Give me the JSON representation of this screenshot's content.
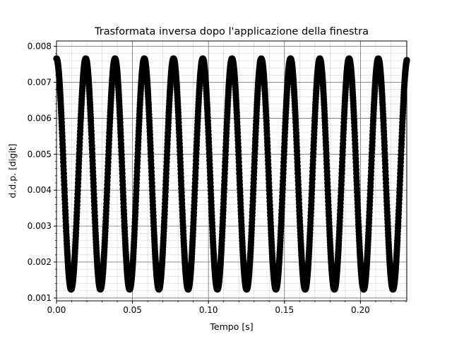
{
  "chart_data": {
    "type": "scatter",
    "title": "Trasformata inversa dopo l'applicazione della finestra",
    "xlabel": "Tempo [s]",
    "ylabel": "d.d.p. [digit]",
    "xlim": [
      0.0,
      0.2305
    ],
    "ylim": [
      0.00092,
      0.00815
    ],
    "x_ticks": [
      0.0,
      0.05,
      0.1,
      0.15,
      0.2
    ],
    "x_tick_labels": [
      "0.00",
      "0.05",
      "0.10",
      "0.15",
      "0.20"
    ],
    "y_ticks": [
      0.001,
      0.002,
      0.003,
      0.004,
      0.005,
      0.006,
      0.007,
      0.008
    ],
    "y_tick_labels": [
      "0.001",
      "0.002",
      "0.003",
      "0.004",
      "0.005",
      "0.006",
      "0.007",
      "0.008"
    ],
    "grid": "major and minor",
    "marker": "circle",
    "marker_color": "#000000",
    "series": [
      {
        "signal": "sinusoid",
        "offset": 0.00445,
        "amplitude": 0.00321,
        "period": 0.01925,
        "phase_peak_t": 0.0,
        "t_start": 0.0,
        "t_end": 0.2305,
        "sample_step": 0.0001,
        "points": []
      }
    ]
  }
}
